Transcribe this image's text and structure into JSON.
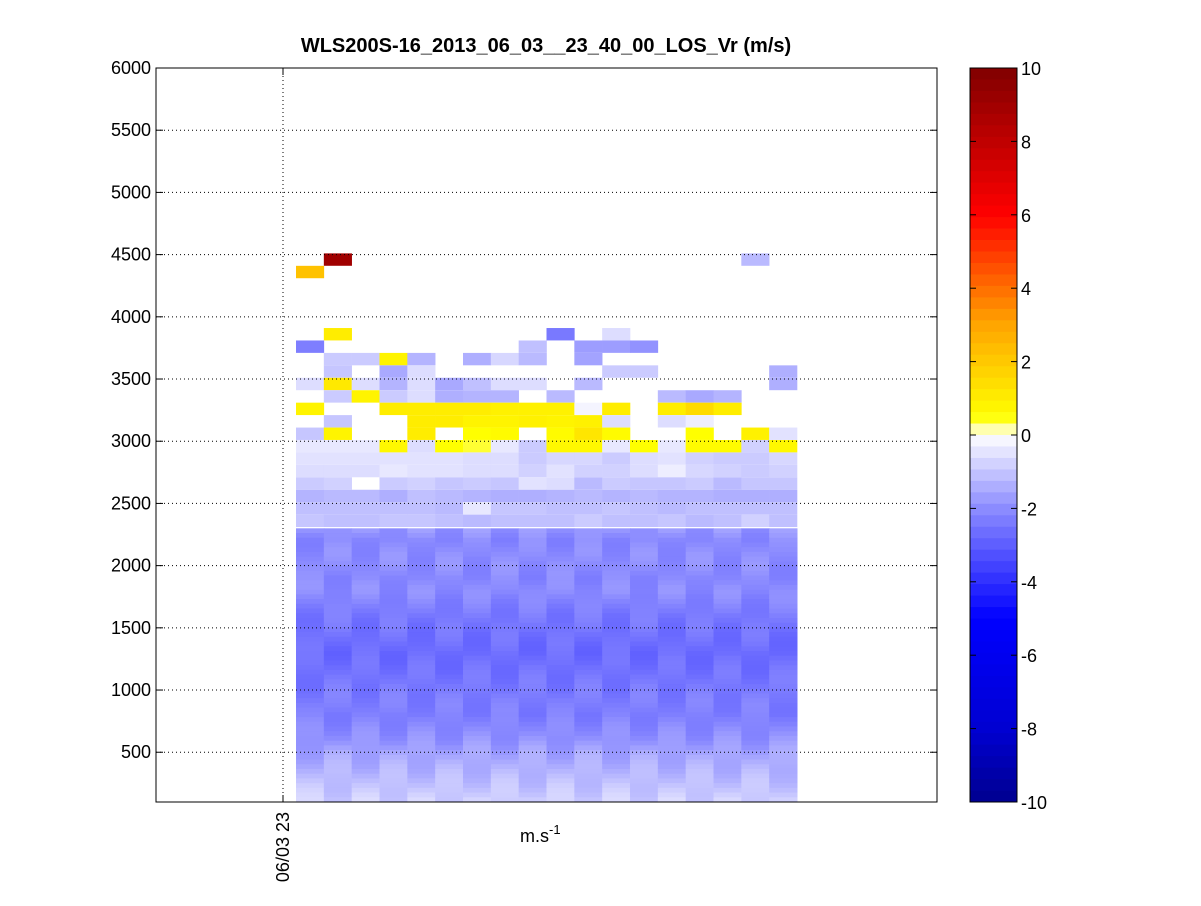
{
  "chart_data": {
    "type": "heatmap",
    "title": "WLS200S-16_2013_06_03__23_40_00_LOS_Vr (m/s)",
    "xlabel": "m.s",
    "xlabel_superscript": "-1",
    "ylabel": "",
    "x_tick_labels": [
      "06/03 23"
    ],
    "y_ticks": [
      500,
      1000,
      1500,
      2000,
      2500,
      3000,
      3500,
      4000,
      4500,
      5000,
      5500,
      6000
    ],
    "ylim": [
      100,
      6000
    ],
    "grid": true,
    "colorbar": {
      "ticks": [
        -10,
        -8,
        -6,
        -4,
        -2,
        0,
        2,
        4,
        6,
        8,
        10
      ],
      "range": [
        -10,
        10
      ],
      "colormap": "blue-white-yellow-red",
      "colors": {
        "low": "#00008f",
        "blue": "#0000ff",
        "white": "#ffffff",
        "yellow": "#ffff00",
        "orange": "#ff8000",
        "red": "#ff0000",
        "high": "#800000"
      }
    },
    "values_note_rows": "rows are range-gate altitude bins; columns are consecutive profiles",
    "row_altitudes": [
      4460,
      4360,
      3860,
      3760,
      3660,
      3560,
      3460,
      3360,
      3260,
      3160,
      3060,
      2960,
      2860,
      2760,
      2660,
      2560,
      2460,
      2360
    ],
    "columns": 18,
    "grid_values": [
      [
        null,
        9.0,
        null,
        null,
        null,
        null,
        null,
        null,
        null,
        null,
        null,
        null,
        null,
        null,
        null,
        null,
        -1.2,
        null
      ],
      [
        2.2,
        null,
        null,
        null,
        null,
        null,
        null,
        null,
        null,
        null,
        null,
        null,
        null,
        null,
        null,
        null,
        null,
        null
      ],
      [
        null,
        1.0,
        null,
        null,
        null,
        null,
        null,
        null,
        null,
        -2.4,
        null,
        -0.6,
        null,
        null,
        null,
        null,
        null,
        null
      ],
      [
        -2.3,
        null,
        null,
        null,
        null,
        null,
        null,
        null,
        -1.1,
        null,
        -1.7,
        -1.7,
        -1.9,
        null,
        null,
        null,
        null,
        null
      ],
      [
        null,
        -0.9,
        -0.9,
        0.8,
        -1.3,
        null,
        -1.4,
        -0.7,
        -1.2,
        null,
        -1.6,
        null,
        null,
        null,
        null,
        null,
        null,
        null
      ],
      [
        null,
        -1.0,
        null,
        -1.5,
        -0.6,
        null,
        null,
        null,
        null,
        null,
        null,
        -0.9,
        -0.9,
        null,
        null,
        null,
        null,
        -1.4
      ],
      [
        -0.6,
        1.1,
        -0.6,
        -1.3,
        -0.6,
        -1.5,
        -1.1,
        -0.6,
        -0.6,
        null,
        -1.2,
        null,
        null,
        null,
        null,
        null,
        null,
        -1.4
      ],
      [
        null,
        -0.9,
        0.8,
        -0.9,
        -0.6,
        -1.4,
        -1.3,
        -1.3,
        null,
        -1.2,
        null,
        null,
        null,
        -1.2,
        -1.5,
        -1.3,
        null,
        null
      ],
      [
        0.8,
        null,
        null,
        1.0,
        1.0,
        1.0,
        1.0,
        0.9,
        0.9,
        0.9,
        -0.2,
        1.0,
        null,
        1.0,
        1.5,
        1.0,
        null,
        null
      ],
      [
        null,
        -1.0,
        null,
        null,
        1.0,
        1.0,
        0.8,
        0.8,
        0.9,
        0.8,
        0.9,
        -0.6,
        null,
        -0.6,
        -0.3,
        null,
        null,
        null
      ],
      [
        -1.0,
        0.8,
        null,
        null,
        1.0,
        null,
        0.5,
        0.6,
        null,
        0.6,
        1.2,
        0.6,
        null,
        null,
        0.5,
        null,
        0.9,
        -0.5
      ],
      [
        -0.4,
        -0.4,
        -0.4,
        0.7,
        -0.6,
        0.5,
        0.4,
        -0.4,
        -0.9,
        0.7,
        0.7,
        -0.4,
        0.5,
        -0.4,
        0.6,
        0.6,
        -0.8,
        0.7
      ],
      [
        -0.5,
        -0.5,
        -0.5,
        -0.5,
        -0.5,
        -0.5,
        -0.6,
        -0.6,
        -0.9,
        -0.7,
        -0.7,
        -0.9,
        -0.6,
        -0.5,
        -0.8,
        -0.9,
        -0.9,
        -0.7
      ],
      [
        -0.6,
        -0.6,
        -0.6,
        -0.4,
        -0.5,
        -0.5,
        -0.6,
        -0.6,
        -0.8,
        -0.5,
        -0.8,
        -0.8,
        -0.6,
        -0.3,
        -0.7,
        -0.8,
        -0.9,
        -0.8
      ],
      [
        -0.9,
        -0.8,
        null,
        -0.9,
        -0.8,
        -1.0,
        -0.9,
        -1.0,
        -0.5,
        -0.6,
        -1.2,
        -0.9,
        -1.0,
        -1.0,
        -0.9,
        -1.2,
        -1.0,
        -1.0
      ],
      [
        -1.3,
        -1.2,
        -1.2,
        -1.4,
        -1.1,
        -1.2,
        -1.3,
        -1.4,
        -1.4,
        -1.3,
        -1.2,
        -1.3,
        -1.2,
        -1.3,
        -1.3,
        -1.4,
        -1.4,
        -1.4
      ],
      [
        -1.1,
        -1.1,
        -1.1,
        -1.1,
        -1.1,
        -1.2,
        -0.4,
        -1.0,
        -1.0,
        -1.1,
        -1.1,
        -1.0,
        -1.1,
        -1.2,
        -1.1,
        -1.1,
        -1.1,
        -1.1
      ],
      [
        -1.0,
        -1.1,
        -1.1,
        -1.0,
        -1.0,
        -1.1,
        -1.2,
        -1.1,
        -1.1,
        -1.1,
        -0.9,
        -1.1,
        -1.1,
        -1.0,
        -1.2,
        -1.1,
        -0.8,
        -1.1
      ]
    ],
    "lower_profile": {
      "altitude_range": [
        100,
        2300
      ],
      "values_by_altitude": [
        {
          "alt": 2300,
          "v": -1.8
        },
        {
          "alt": 2200,
          "v": -2.1
        },
        {
          "alt": 2100,
          "v": -2.0
        },
        {
          "alt": 2000,
          "v": -2.0
        },
        {
          "alt": 1900,
          "v": -2.1
        },
        {
          "alt": 1800,
          "v": -2.0
        },
        {
          "alt": 1700,
          "v": -2.2
        },
        {
          "alt": 1600,
          "v": -2.4
        },
        {
          "alt": 1500,
          "v": -2.5
        },
        {
          "alt": 1400,
          "v": -2.6
        },
        {
          "alt": 1300,
          "v": -2.7
        },
        {
          "alt": 1200,
          "v": -2.6
        },
        {
          "alt": 1100,
          "v": -2.5
        },
        {
          "alt": 1000,
          "v": -2.4
        },
        {
          "alt": 900,
          "v": -2.3
        },
        {
          "alt": 800,
          "v": -2.3
        },
        {
          "alt": 700,
          "v": -2.1
        },
        {
          "alt": 600,
          "v": -1.9
        },
        {
          "alt": 500,
          "v": -1.6
        },
        {
          "alt": 400,
          "v": -1.4
        },
        {
          "alt": 300,
          "v": -1.2
        },
        {
          "alt": 200,
          "v": -1.0
        },
        {
          "alt": 100,
          "v": -0.8
        }
      ]
    }
  }
}
